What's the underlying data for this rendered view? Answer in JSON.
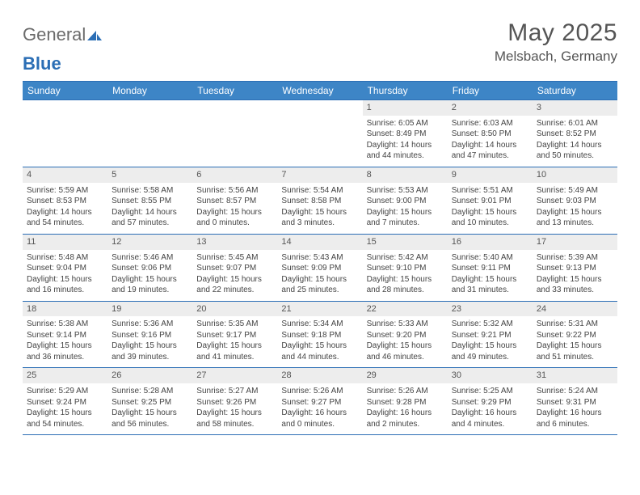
{
  "brand": {
    "part1": "General",
    "part2": "Blue"
  },
  "title": "May 2025",
  "location": "Melsbach, Germany",
  "colors": {
    "header_bg": "#3d85c6",
    "border": "#2b6eb5",
    "daynum_bg": "#ededed",
    "text": "#444444",
    "title_text": "#555555",
    "logo_gray": "#6b6b6b"
  },
  "days_of_week": [
    "Sunday",
    "Monday",
    "Tuesday",
    "Wednesday",
    "Thursday",
    "Friday",
    "Saturday"
  ],
  "weeks": [
    [
      {
        "blank": true
      },
      {
        "blank": true
      },
      {
        "blank": true
      },
      {
        "blank": true
      },
      {
        "n": "1",
        "sunrise": "6:05 AM",
        "sunset": "8:49 PM",
        "daylight": "14 hours and 44 minutes."
      },
      {
        "n": "2",
        "sunrise": "6:03 AM",
        "sunset": "8:50 PM",
        "daylight": "14 hours and 47 minutes."
      },
      {
        "n": "3",
        "sunrise": "6:01 AM",
        "sunset": "8:52 PM",
        "daylight": "14 hours and 50 minutes."
      }
    ],
    [
      {
        "n": "4",
        "sunrise": "5:59 AM",
        "sunset": "8:53 PM",
        "daylight": "14 hours and 54 minutes."
      },
      {
        "n": "5",
        "sunrise": "5:58 AM",
        "sunset": "8:55 PM",
        "daylight": "14 hours and 57 minutes."
      },
      {
        "n": "6",
        "sunrise": "5:56 AM",
        "sunset": "8:57 PM",
        "daylight": "15 hours and 0 minutes."
      },
      {
        "n": "7",
        "sunrise": "5:54 AM",
        "sunset": "8:58 PM",
        "daylight": "15 hours and 3 minutes."
      },
      {
        "n": "8",
        "sunrise": "5:53 AM",
        "sunset": "9:00 PM",
        "daylight": "15 hours and 7 minutes."
      },
      {
        "n": "9",
        "sunrise": "5:51 AM",
        "sunset": "9:01 PM",
        "daylight": "15 hours and 10 minutes."
      },
      {
        "n": "10",
        "sunrise": "5:49 AM",
        "sunset": "9:03 PM",
        "daylight": "15 hours and 13 minutes."
      }
    ],
    [
      {
        "n": "11",
        "sunrise": "5:48 AM",
        "sunset": "9:04 PM",
        "daylight": "15 hours and 16 minutes."
      },
      {
        "n": "12",
        "sunrise": "5:46 AM",
        "sunset": "9:06 PM",
        "daylight": "15 hours and 19 minutes."
      },
      {
        "n": "13",
        "sunrise": "5:45 AM",
        "sunset": "9:07 PM",
        "daylight": "15 hours and 22 minutes."
      },
      {
        "n": "14",
        "sunrise": "5:43 AM",
        "sunset": "9:09 PM",
        "daylight": "15 hours and 25 minutes."
      },
      {
        "n": "15",
        "sunrise": "5:42 AM",
        "sunset": "9:10 PM",
        "daylight": "15 hours and 28 minutes."
      },
      {
        "n": "16",
        "sunrise": "5:40 AM",
        "sunset": "9:11 PM",
        "daylight": "15 hours and 31 minutes."
      },
      {
        "n": "17",
        "sunrise": "5:39 AM",
        "sunset": "9:13 PM",
        "daylight": "15 hours and 33 minutes."
      }
    ],
    [
      {
        "n": "18",
        "sunrise": "5:38 AM",
        "sunset": "9:14 PM",
        "daylight": "15 hours and 36 minutes."
      },
      {
        "n": "19",
        "sunrise": "5:36 AM",
        "sunset": "9:16 PM",
        "daylight": "15 hours and 39 minutes."
      },
      {
        "n": "20",
        "sunrise": "5:35 AM",
        "sunset": "9:17 PM",
        "daylight": "15 hours and 41 minutes."
      },
      {
        "n": "21",
        "sunrise": "5:34 AM",
        "sunset": "9:18 PM",
        "daylight": "15 hours and 44 minutes."
      },
      {
        "n": "22",
        "sunrise": "5:33 AM",
        "sunset": "9:20 PM",
        "daylight": "15 hours and 46 minutes."
      },
      {
        "n": "23",
        "sunrise": "5:32 AM",
        "sunset": "9:21 PM",
        "daylight": "15 hours and 49 minutes."
      },
      {
        "n": "24",
        "sunrise": "5:31 AM",
        "sunset": "9:22 PM",
        "daylight": "15 hours and 51 minutes."
      }
    ],
    [
      {
        "n": "25",
        "sunrise": "5:29 AM",
        "sunset": "9:24 PM",
        "daylight": "15 hours and 54 minutes."
      },
      {
        "n": "26",
        "sunrise": "5:28 AM",
        "sunset": "9:25 PM",
        "daylight": "15 hours and 56 minutes."
      },
      {
        "n": "27",
        "sunrise": "5:27 AM",
        "sunset": "9:26 PM",
        "daylight": "15 hours and 58 minutes."
      },
      {
        "n": "28",
        "sunrise": "5:26 AM",
        "sunset": "9:27 PM",
        "daylight": "16 hours and 0 minutes."
      },
      {
        "n": "29",
        "sunrise": "5:26 AM",
        "sunset": "9:28 PM",
        "daylight": "16 hours and 2 minutes."
      },
      {
        "n": "30",
        "sunrise": "5:25 AM",
        "sunset": "9:29 PM",
        "daylight": "16 hours and 4 minutes."
      },
      {
        "n": "31",
        "sunrise": "5:24 AM",
        "sunset": "9:31 PM",
        "daylight": "16 hours and 6 minutes."
      }
    ]
  ],
  "labels": {
    "sunrise_prefix": "Sunrise: ",
    "sunset_prefix": "Sunset: ",
    "daylight_prefix": "Daylight: "
  }
}
